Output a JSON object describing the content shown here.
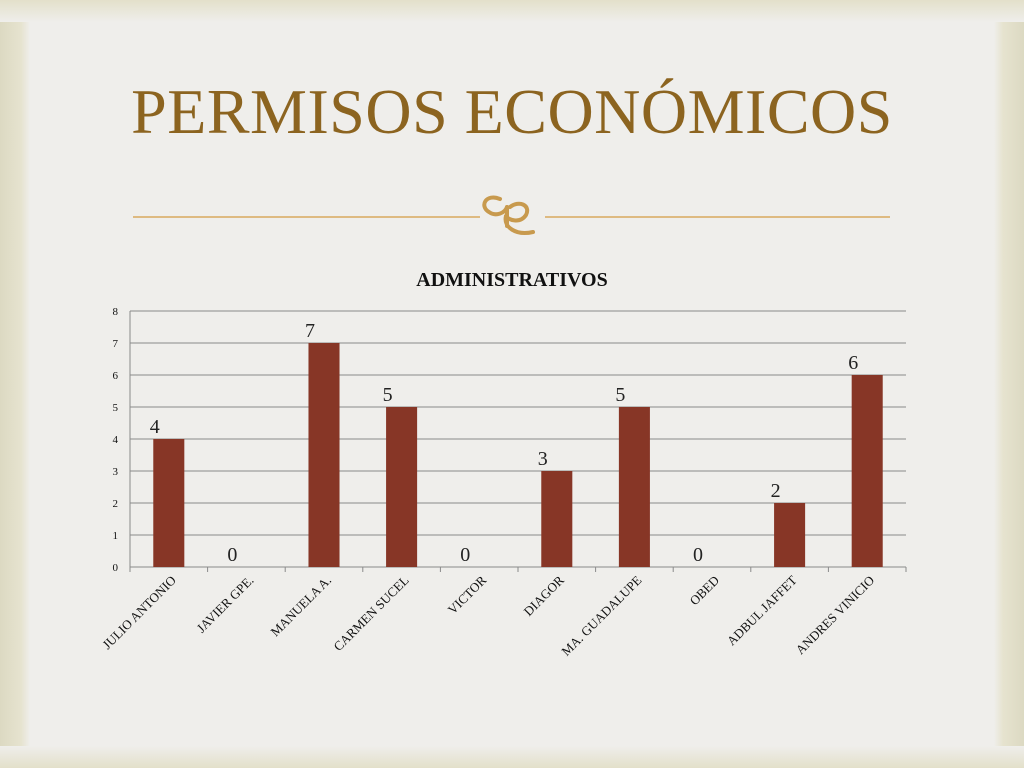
{
  "slide": {
    "title": "PERMISOS ECONÓMICOS",
    "accent_color": "#8c6420",
    "rule_color": "#d9a85e",
    "ornament_icon": "fleuron-icon"
  },
  "chart_data": {
    "type": "bar",
    "title": "ADMINISTRATIVOS",
    "categories": [
      "JULIO ANTONIO",
      "JAVIER GPE.",
      "MANUELA A.",
      "CARMEN SUCEL",
      "VICTOR",
      "DIAGOR",
      "MA. GUADALUPE",
      "OBED",
      "ADBUL JAFFET",
      "ANDRES VINICIO"
    ],
    "values": [
      4,
      0,
      7,
      5,
      0,
      3,
      5,
      0,
      2,
      6
    ],
    "data_labels": [
      "4",
      "0",
      "7",
      "5",
      "0",
      "3",
      "5",
      "0",
      "2",
      "6"
    ],
    "ylim": [
      0,
      8
    ],
    "yticks": [
      "0",
      "1",
      "2",
      "3",
      "4",
      "5",
      "6",
      "7",
      "8"
    ],
    "grid": true,
    "legend": "none",
    "bar_color": "#873626"
  }
}
